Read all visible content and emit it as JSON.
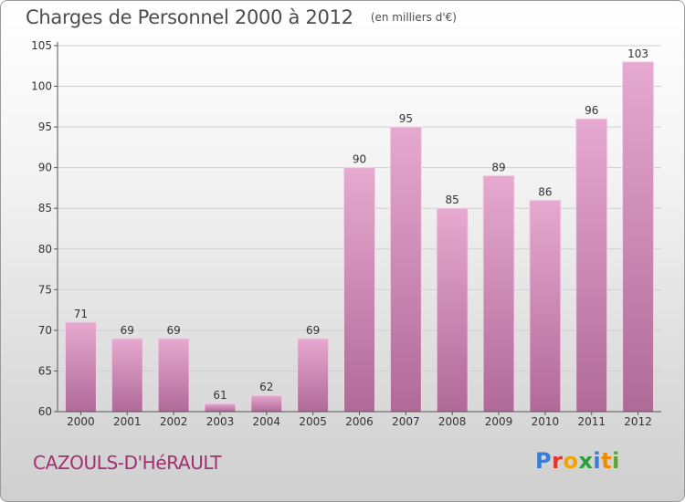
{
  "header": {
    "title": "Charges de Personnel 2000 à 2012",
    "subtitle": "(en milliers d'€)"
  },
  "footer": {
    "commune": "CAZOULS-D'HéRAULT",
    "logo_text": "Proxiti",
    "logo_colors": [
      "#3a7bd5",
      "#e8332a",
      "#f5a300",
      "#2e9d3f",
      "#3a7bd5",
      "#f08a00",
      "#5aa632"
    ]
  },
  "colors": {
    "bar_top": "#e6a9cf",
    "bar_bottom": "#b06a98",
    "bar_edge": "#f2d2e6",
    "grid": "#cfcfcf",
    "axis": "#555555",
    "text": "#333333"
  },
  "chart_data": {
    "type": "bar",
    "title": "Charges de Personnel 2000 à 2012",
    "subtitle": "(en milliers d'€)",
    "categories": [
      "2000",
      "2001",
      "2002",
      "2003",
      "2004",
      "2005",
      "2006",
      "2007",
      "2008",
      "2009",
      "2010",
      "2011",
      "2012"
    ],
    "values": [
      71,
      69,
      69,
      61,
      62,
      69,
      90,
      95,
      85,
      89,
      86,
      96,
      103
    ],
    "ylim": [
      60,
      105
    ],
    "yticks": [
      60,
      65,
      70,
      75,
      80,
      85,
      90,
      95,
      100,
      105
    ],
    "grid": true,
    "xlabel": "",
    "ylabel": ""
  }
}
